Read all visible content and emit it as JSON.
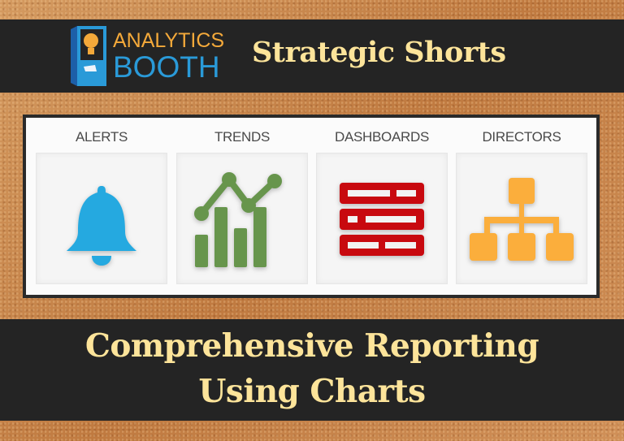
{
  "header": {
    "logo": {
      "line1": "ANALYTICS",
      "line2": "BOOTH"
    },
    "title": "Strategic Shorts"
  },
  "panel": {
    "items": [
      {
        "label": "ALERTS",
        "icon": "bell-icon",
        "color": "#25a9e0"
      },
      {
        "label": "TRENDS",
        "icon": "trend-chart-icon",
        "color": "#67954c"
      },
      {
        "label": "DASHBOARDS",
        "icon": "dashboard-icon",
        "color": "#c8090f"
      },
      {
        "label": "DIRECTORS",
        "icon": "org-chart-icon",
        "color": "#fbae3c"
      }
    ]
  },
  "footer": {
    "line1": "Comprehensive Reporting",
    "line2": "Using Charts"
  }
}
